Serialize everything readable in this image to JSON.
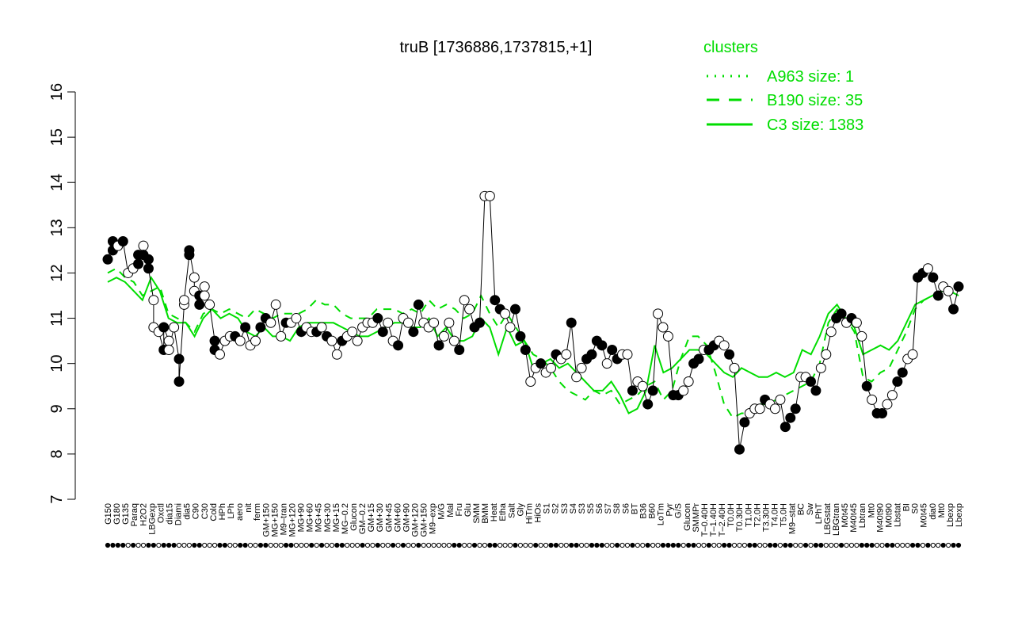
{
  "chart_data": {
    "type": "line",
    "title": "truB [1736886,1737815,+1]",
    "xlabel": "",
    "ylabel": "",
    "ylim": [
      7,
      16
    ],
    "yticks": [
      7,
      8,
      9,
      10,
      11,
      12,
      13,
      14,
      15,
      16
    ],
    "grid": false,
    "legend": {
      "title": "clusters",
      "placement": "top-right",
      "entries": [
        {
          "label": "A963 size: 1",
          "style": "dotted"
        },
        {
          "label": "B190 size: 35",
          "style": "dashed"
        },
        {
          "label": "C3 size: 1383",
          "style": "solid"
        }
      ]
    },
    "colors": {
      "lines": "#00dd00",
      "points_filled": "#000000",
      "points_open": "#ffffff",
      "axis": "#000000"
    },
    "x_tick_labels": [
      "G150",
      "G180",
      "G135",
      "Paraq",
      "H2O2",
      "LBGexp",
      "Oxctl",
      "dia15",
      "Diami",
      "dia5",
      "C90",
      "C30",
      "Cold",
      "HPh",
      "LPh",
      "aero",
      "nit",
      "ferm",
      "GM+150",
      "MG+150",
      "M9–tran",
      "MG+120",
      "MG+90",
      "MG+60",
      "MG+45",
      "MG+30",
      "MG+15",
      "MG–0.2",
      "Glucon",
      "GM–0.2",
      "GM+15",
      "GM+30",
      "GM+45",
      "GM+60",
      "GM+90",
      "GM+120",
      "GM+150",
      "M9–exp",
      "M/G",
      "Mal",
      "Fru",
      "Glu",
      "SMM",
      "BMM",
      "Heat",
      "Etha",
      "Salt",
      "Gly",
      "HiTm",
      "HiOs",
      "S1",
      "S2",
      "S3",
      "S4",
      "S3",
      "S5",
      "S6",
      "S7",
      "S8",
      "S6",
      "BT",
      "B36",
      "B60",
      "LoTm",
      "Pyr",
      "G/S",
      "Glucon",
      "SMMPr",
      "T–0.40H",
      "T–1.40H",
      "T–2.40H",
      "T0.0H",
      "T0.30H",
      "T1.0H",
      "T2.0H",
      "T3.30H",
      "T4.0H",
      "T5.0H",
      "M9–stat",
      "BC",
      "Sw",
      "LPhT",
      "LBGstat",
      "LBGtran",
      "M0t45",
      "M40t45",
      "Lbtran",
      "Mt0",
      "M40t90",
      "M0t90",
      "Lbstat",
      "BI",
      "S0",
      "M0t45",
      "dia0",
      "Mt0",
      "Lbexp",
      "Lbexp"
    ],
    "series": [
      {
        "name": "C3 size: 1383",
        "style": "solid",
        "values": [
          11.8,
          11.9,
          11.8,
          11.6,
          11.4,
          11.9,
          11.6,
          11.0,
          10.9,
          10.9,
          10.6,
          11.0,
          11.2,
          11.0,
          11.1,
          11.0,
          10.7,
          10.6,
          10.8,
          10.6,
          10.6,
          10.5,
          10.8,
          10.9,
          10.9,
          10.9,
          10.9,
          10.8,
          10.7,
          10.6,
          10.6,
          10.7,
          10.8,
          10.9,
          10.9,
          10.8,
          10.8,
          11.0,
          10.6,
          10.8,
          10.5,
          10.5,
          10.6,
          11.0,
          10.8,
          10.2,
          10.8,
          10.4,
          10.5,
          9.9,
          10.0,
          10.1,
          9.9,
          10.0,
          9.8,
          9.6,
          9.4,
          9.4,
          9.6,
          9.3,
          8.9,
          9.0,
          9.4,
          10.4,
          9.8,
          9.9,
          10.1,
          10.3,
          10.3,
          10.2,
          10.0,
          9.8,
          9.7,
          9.9,
          9.8,
          9.7,
          9.7,
          9.8,
          9.7,
          9.8,
          10.3,
          10.2,
          10.6,
          11.1,
          11.3,
          11.0,
          10.8,
          10.2,
          10.3,
          10.4,
          10.3,
          10.5,
          10.9,
          11.3,
          11.4,
          11.5,
          11.6,
          11.6,
          11.5
        ]
      },
      {
        "name": "B190 size: 35",
        "style": "dashed",
        "values": [
          12.0,
          12.1,
          11.9,
          11.8,
          11.5,
          11.6,
          11.7,
          11.1,
          11.0,
          10.9,
          10.7,
          11.1,
          11.2,
          11.1,
          11.2,
          11.1,
          11.0,
          11.2,
          11.1,
          11.0,
          11.1,
          11.1,
          11.1,
          11.2,
          11.4,
          11.3,
          11.3,
          11.1,
          11.0,
          11.0,
          11.0,
          11.2,
          11.2,
          11.2,
          11.1,
          11.2,
          11.1,
          11.4,
          11.2,
          11.3,
          11.2,
          11.0,
          11.1,
          11.5,
          11.1,
          10.8,
          11.1,
          10.8,
          10.5,
          10.2,
          10.1,
          9.9,
          9.6,
          9.4,
          9.3,
          9.2,
          9.4,
          9.3,
          9.4,
          9.1,
          9.2,
          9.3,
          9.5,
          9.6,
          9.2,
          9.4,
          10.1,
          10.6,
          10.6,
          10.4,
          9.8,
          9.1,
          8.8,
          8.9,
          8.9,
          9.1,
          9.1,
          9.2,
          9.3,
          9.4,
          9.5,
          9.6,
          10.0,
          10.9,
          11.2,
          11.0,
          10.7,
          9.7,
          9.6,
          9.8,
          9.9,
          10.3,
          10.7,
          11.2,
          11.4,
          11.5,
          11.6,
          11.6,
          11.5
        ]
      }
    ],
    "points": [
      {
        "x": 0,
        "y": 12.3,
        "filled": true
      },
      {
        "x": 1,
        "y": 12.7,
        "filled": true
      },
      {
        "x": 1,
        "y": 12.5,
        "filled": true
      },
      {
        "x": 2,
        "y": 12.6,
        "filled": true
      },
      {
        "x": 2,
        "y": 12.6,
        "filled": false
      },
      {
        "x": 3,
        "y": 12.7,
        "filled": true
      },
      {
        "x": 4,
        "y": 12.0,
        "filled": false
      },
      {
        "x": 5,
        "y": 12.1,
        "filled": false
      },
      {
        "x": 6,
        "y": 12.4,
        "filled": true
      },
      {
        "x": 6,
        "y": 12.2,
        "filled": true
      },
      {
        "x": 7,
        "y": 12.6,
        "filled": false
      },
      {
        "x": 7,
        "y": 12.4,
        "filled": true
      },
      {
        "x": 8,
        "y": 12.3,
        "filled": true
      },
      {
        "x": 8,
        "y": 12.1,
        "filled": true
      },
      {
        "x": 9,
        "y": 11.4,
        "filled": false
      },
      {
        "x": 9,
        "y": 10.8,
        "filled": false
      },
      {
        "x": 10,
        "y": 10.7,
        "filled": false
      },
      {
        "x": 11,
        "y": 10.3,
        "filled": true
      },
      {
        "x": 11,
        "y": 10.8,
        "filled": true
      },
      {
        "x": 12,
        "y": 10.5,
        "filled": false
      },
      {
        "x": 12,
        "y": 10.3,
        "filled": false
      },
      {
        "x": 13,
        "y": 10.8,
        "filled": false
      },
      {
        "x": 14,
        "y": 10.1,
        "filled": true
      },
      {
        "x": 14,
        "y": 9.6,
        "filled": true
      },
      {
        "x": 15,
        "y": 11.3,
        "filled": false
      },
      {
        "x": 15,
        "y": 11.4,
        "filled": false
      },
      {
        "x": 16,
        "y": 12.4,
        "filled": true
      },
      {
        "x": 16,
        "y": 12.5,
        "filled": true
      },
      {
        "x": 17,
        "y": 11.9,
        "filled": false
      },
      {
        "x": 17,
        "y": 11.6,
        "filled": false
      },
      {
        "x": 18,
        "y": 11.5,
        "filled": true
      },
      {
        "x": 18,
        "y": 11.3,
        "filled": true
      },
      {
        "x": 19,
        "y": 11.7,
        "filled": false
      },
      {
        "x": 19,
        "y": 11.5,
        "filled": false
      },
      {
        "x": 20,
        "y": 11.3,
        "filled": false
      },
      {
        "x": 21,
        "y": 10.5,
        "filled": true
      },
      {
        "x": 21,
        "y": 10.3,
        "filled": true
      },
      {
        "x": 22,
        "y": 10.2,
        "filled": false
      },
      {
        "x": 23,
        "y": 10.5,
        "filled": false
      },
      {
        "x": 24,
        "y": 10.6,
        "filled": false
      },
      {
        "x": 25,
        "y": 10.6,
        "filled": true
      },
      {
        "x": 26,
        "y": 10.5,
        "filled": false
      },
      {
        "x": 27,
        "y": 10.8,
        "filled": true
      },
      {
        "x": 28,
        "y": 10.4,
        "filled": false
      },
      {
        "x": 29,
        "y": 10.5,
        "filled": false
      },
      {
        "x": 30,
        "y": 10.8,
        "filled": true
      },
      {
        "x": 31,
        "y": 11.0,
        "filled": true
      },
      {
        "x": 32,
        "y": 10.9,
        "filled": false
      },
      {
        "x": 33,
        "y": 11.3,
        "filled": false
      },
      {
        "x": 34,
        "y": 10.6,
        "filled": false
      },
      {
        "x": 35,
        "y": 10.9,
        "filled": true
      },
      {
        "x": 36,
        "y": 10.9,
        "filled": false
      },
      {
        "x": 37,
        "y": 11.0,
        "filled": false
      },
      {
        "x": 38,
        "y": 10.7,
        "filled": true
      },
      {
        "x": 39,
        "y": 10.8,
        "filled": false
      },
      {
        "x": 40,
        "y": 10.7,
        "filled": false
      },
      {
        "x": 41,
        "y": 10.7,
        "filled": true
      },
      {
        "x": 42,
        "y": 10.8,
        "filled": false
      },
      {
        "x": 43,
        "y": 10.6,
        "filled": true
      },
      {
        "x": 44,
        "y": 10.5,
        "filled": false
      },
      {
        "x": 45,
        "y": 10.2,
        "filled": false
      },
      {
        "x": 46,
        "y": 10.5,
        "filled": true
      },
      {
        "x": 47,
        "y": 10.6,
        "filled": false
      },
      {
        "x": 48,
        "y": 10.7,
        "filled": false
      },
      {
        "x": 49,
        "y": 10.5,
        "filled": false
      },
      {
        "x": 50,
        "y": 10.8,
        "filled": false
      },
      {
        "x": 51,
        "y": 10.9,
        "filled": false
      },
      {
        "x": 52,
        "y": 10.9,
        "filled": false
      },
      {
        "x": 53,
        "y": 11.0,
        "filled": true
      },
      {
        "x": 54,
        "y": 10.7,
        "filled": true
      },
      {
        "x": 55,
        "y": 10.9,
        "filled": false
      },
      {
        "x": 56,
        "y": 10.5,
        "filled": false
      },
      {
        "x": 57,
        "y": 10.4,
        "filled": true
      },
      {
        "x": 58,
        "y": 11.0,
        "filled": false
      },
      {
        "x": 59,
        "y": 10.9,
        "filled": false
      },
      {
        "x": 60,
        "y": 10.7,
        "filled": true
      },
      {
        "x": 61,
        "y": 11.3,
        "filled": true
      },
      {
        "x": 62,
        "y": 10.9,
        "filled": false
      },
      {
        "x": 63,
        "y": 10.8,
        "filled": false
      },
      {
        "x": 64,
        "y": 10.9,
        "filled": false
      },
      {
        "x": 65,
        "y": 10.4,
        "filled": true
      },
      {
        "x": 66,
        "y": 10.6,
        "filled": false
      },
      {
        "x": 67,
        "y": 10.9,
        "filled": false
      },
      {
        "x": 68,
        "y": 10.5,
        "filled": false
      },
      {
        "x": 69,
        "y": 10.3,
        "filled": true
      },
      {
        "x": 70,
        "y": 11.4,
        "filled": false
      },
      {
        "x": 71,
        "y": 11.2,
        "filled": false
      },
      {
        "x": 72,
        "y": 10.8,
        "filled": true
      },
      {
        "x": 73,
        "y": 10.9,
        "filled": true
      },
      {
        "x": 74,
        "y": 13.7,
        "filled": false
      },
      {
        "x": 75,
        "y": 13.7,
        "filled": false
      },
      {
        "x": 76,
        "y": 11.4,
        "filled": true
      },
      {
        "x": 77,
        "y": 11.2,
        "filled": true
      },
      {
        "x": 78,
        "y": 11.1,
        "filled": false
      },
      {
        "x": 79,
        "y": 10.8,
        "filled": false
      },
      {
        "x": 80,
        "y": 11.2,
        "filled": true
      },
      {
        "x": 81,
        "y": 10.6,
        "filled": true
      },
      {
        "x": 82,
        "y": 10.3,
        "filled": true
      },
      {
        "x": 83,
        "y": 9.6,
        "filled": false
      },
      {
        "x": 84,
        "y": 9.9,
        "filled": false
      },
      {
        "x": 85,
        "y": 10.0,
        "filled": true
      },
      {
        "x": 86,
        "y": 9.8,
        "filled": false
      },
      {
        "x": 87,
        "y": 9.9,
        "filled": false
      },
      {
        "x": 88,
        "y": 10.2,
        "filled": true
      },
      {
        "x": 89,
        "y": 10.1,
        "filled": false
      },
      {
        "x": 90,
        "y": 10.2,
        "filled": false
      },
      {
        "x": 91,
        "y": 10.9,
        "filled": true
      },
      {
        "x": 92,
        "y": 9.7,
        "filled": false
      },
      {
        "x": 93,
        "y": 9.9,
        "filled": false
      },
      {
        "x": 94,
        "y": 10.1,
        "filled": true
      },
      {
        "x": 95,
        "y": 10.2,
        "filled": true
      },
      {
        "x": 96,
        "y": 10.5,
        "filled": true
      },
      {
        "x": 97,
        "y": 10.4,
        "filled": true
      },
      {
        "x": 98,
        "y": 10.0,
        "filled": false
      },
      {
        "x": 99,
        "y": 10.3,
        "filled": true
      },
      {
        "x": 100,
        "y": 10.1,
        "filled": true
      },
      {
        "x": 101,
        "y": 10.2,
        "filled": false
      },
      {
        "x": 102,
        "y": 10.2,
        "filled": false
      },
      {
        "x": 103,
        "y": 9.4,
        "filled": true
      },
      {
        "x": 104,
        "y": 9.6,
        "filled": false
      },
      {
        "x": 105,
        "y": 9.5,
        "filled": false
      },
      {
        "x": 106,
        "y": 9.1,
        "filled": true
      },
      {
        "x": 107,
        "y": 9.4,
        "filled": true
      },
      {
        "x": 108,
        "y": 11.1,
        "filled": false
      },
      {
        "x": 109,
        "y": 10.8,
        "filled": false
      },
      {
        "x": 110,
        "y": 10.6,
        "filled": false
      },
      {
        "x": 111,
        "y": 9.3,
        "filled": true
      },
      {
        "x": 112,
        "y": 9.3,
        "filled": true
      },
      {
        "x": 113,
        "y": 9.4,
        "filled": false
      },
      {
        "x": 114,
        "y": 9.6,
        "filled": false
      },
      {
        "x": 115,
        "y": 10.0,
        "filled": true
      },
      {
        "x": 116,
        "y": 10.1,
        "filled": true
      },
      {
        "x": 117,
        "y": 10.3,
        "filled": false
      },
      {
        "x": 118,
        "y": 10.3,
        "filled": true
      },
      {
        "x": 119,
        "y": 10.4,
        "filled": true
      },
      {
        "x": 120,
        "y": 10.5,
        "filled": false
      },
      {
        "x": 121,
        "y": 10.4,
        "filled": false
      },
      {
        "x": 122,
        "y": 10.2,
        "filled": true
      },
      {
        "x": 123,
        "y": 9.9,
        "filled": false
      },
      {
        "x": 124,
        "y": 8.1,
        "filled": true
      },
      {
        "x": 125,
        "y": 8.7,
        "filled": true
      },
      {
        "x": 126,
        "y": 8.9,
        "filled": false
      },
      {
        "x": 127,
        "y": 9.0,
        "filled": false
      },
      {
        "x": 128,
        "y": 9.0,
        "filled": false
      },
      {
        "x": 129,
        "y": 9.2,
        "filled": true
      },
      {
        "x": 130,
        "y": 9.1,
        "filled": false
      },
      {
        "x": 131,
        "y": 9.0,
        "filled": false
      },
      {
        "x": 132,
        "y": 9.2,
        "filled": false
      },
      {
        "x": 133,
        "y": 8.6,
        "filled": true
      },
      {
        "x": 134,
        "y": 8.8,
        "filled": true
      },
      {
        "x": 135,
        "y": 9.0,
        "filled": true
      },
      {
        "x": 136,
        "y": 9.7,
        "filled": false
      },
      {
        "x": 137,
        "y": 9.7,
        "filled": false
      },
      {
        "x": 138,
        "y": 9.6,
        "filled": true
      },
      {
        "x": 139,
        "y": 9.4,
        "filled": true
      },
      {
        "x": 140,
        "y": 9.9,
        "filled": false
      },
      {
        "x": 141,
        "y": 10.2,
        "filled": false
      },
      {
        "x": 142,
        "y": 10.7,
        "filled": false
      },
      {
        "x": 143,
        "y": 11.0,
        "filled": true
      },
      {
        "x": 144,
        "y": 11.1,
        "filled": true
      },
      {
        "x": 145,
        "y": 10.9,
        "filled": false
      },
      {
        "x": 146,
        "y": 11.0,
        "filled": true
      },
      {
        "x": 147,
        "y": 10.9,
        "filled": false
      },
      {
        "x": 148,
        "y": 10.6,
        "filled": false
      },
      {
        "x": 149,
        "y": 9.5,
        "filled": true
      },
      {
        "x": 150,
        "y": 9.2,
        "filled": false
      },
      {
        "x": 151,
        "y": 8.9,
        "filled": true
      },
      {
        "x": 152,
        "y": 8.9,
        "filled": true
      },
      {
        "x": 153,
        "y": 9.1,
        "filled": false
      },
      {
        "x": 154,
        "y": 9.3,
        "filled": false
      },
      {
        "x": 155,
        "y": 9.6,
        "filled": true
      },
      {
        "x": 156,
        "y": 9.8,
        "filled": true
      },
      {
        "x": 157,
        "y": 10.1,
        "filled": false
      },
      {
        "x": 158,
        "y": 10.2,
        "filled": false
      },
      {
        "x": 159,
        "y": 11.9,
        "filled": true
      },
      {
        "x": 160,
        "y": 12.0,
        "filled": true
      },
      {
        "x": 161,
        "y": 12.1,
        "filled": false
      },
      {
        "x": 162,
        "y": 11.9,
        "filled": true
      },
      {
        "x": 163,
        "y": 11.5,
        "filled": true
      },
      {
        "x": 164,
        "y": 11.7,
        "filled": false
      },
      {
        "x": 165,
        "y": 11.6,
        "filled": false
      },
      {
        "x": 166,
        "y": 11.2,
        "filled": true
      },
      {
        "x": 167,
        "y": 11.7,
        "filled": true
      }
    ],
    "n_positions": 168
  }
}
